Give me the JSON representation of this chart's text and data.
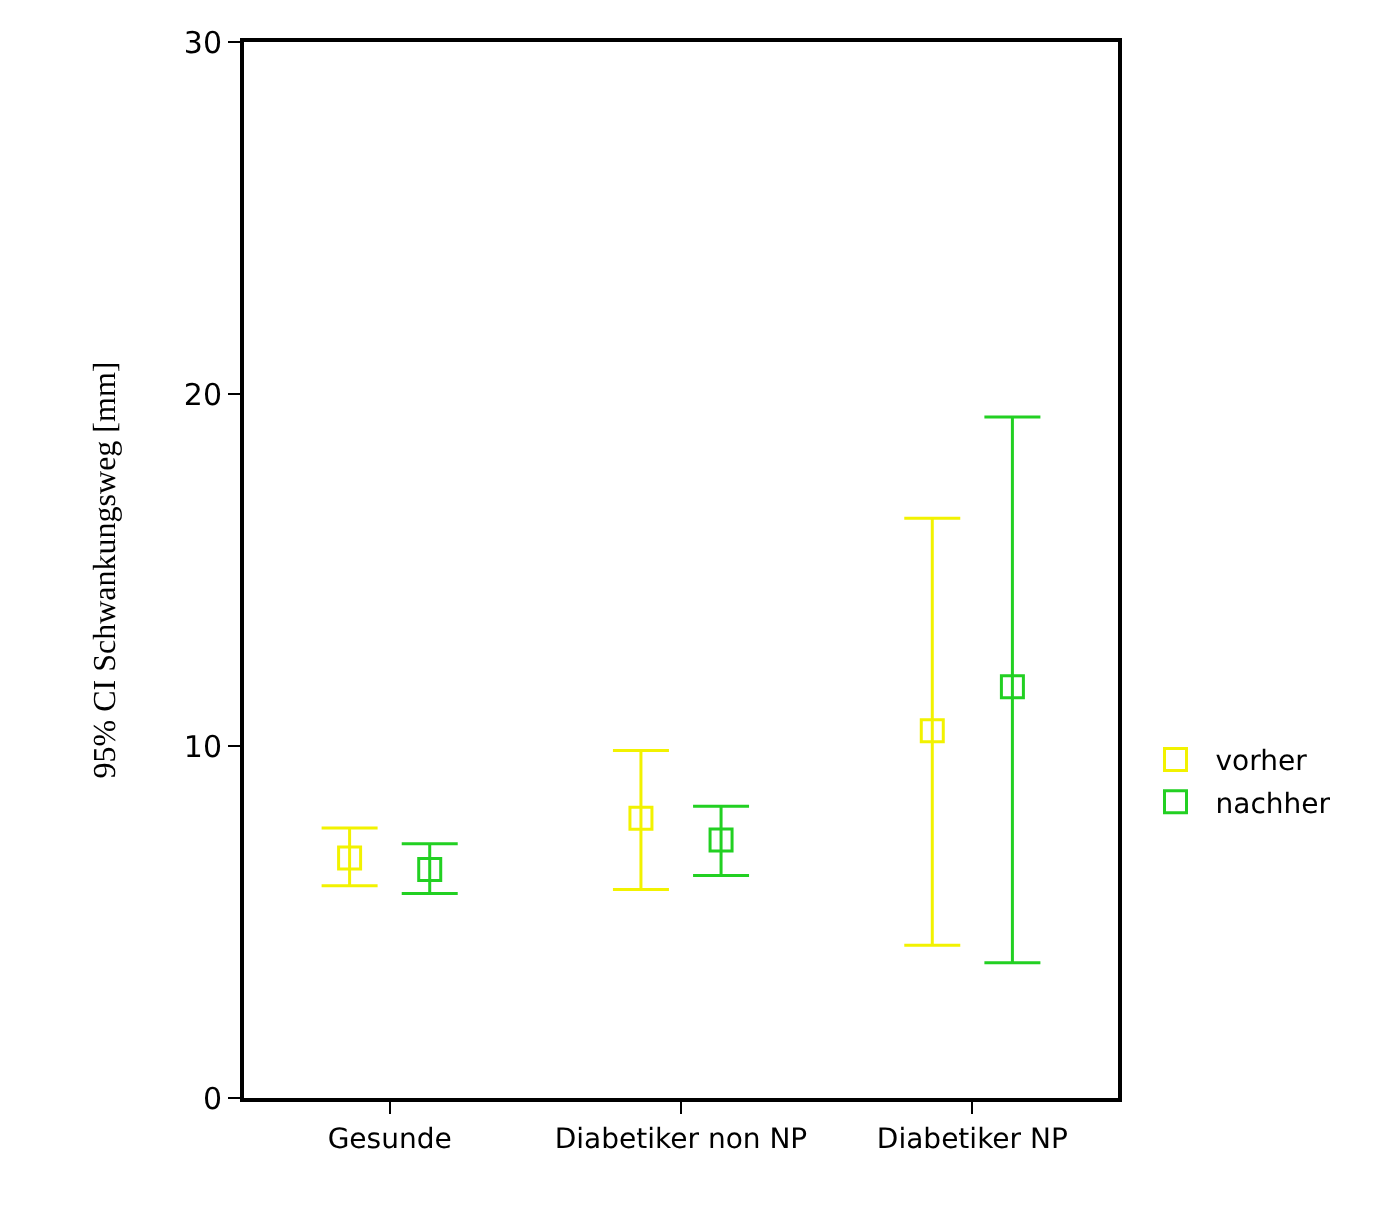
{
  "chart_data": {
    "type": "scatter",
    "ylabel": "95% CI Schwankungsweg [mm]",
    "categories": [
      "Gesunde",
      "Diabetiker non NP",
      "Diabetiker NP"
    ],
    "series": [
      {
        "name": "vorher",
        "color": "#f2f200",
        "values": [
          6.82,
          7.95,
          10.43
        ],
        "errors": [
          [
            6.03,
            7.67
          ],
          [
            5.92,
            9.87
          ],
          [
            4.34,
            16.47
          ]
        ]
      },
      {
        "name": "nachher",
        "color": "#22d022",
        "values": [
          6.49,
          7.33,
          11.68
        ],
        "errors": [
          [
            5.81,
            7.22
          ],
          [
            6.32,
            8.29
          ],
          [
            3.84,
            19.35
          ]
        ]
      }
    ],
    "ylim": [
      0,
      30
    ],
    "yticks": [
      0,
      10,
      20,
      30
    ],
    "grid": false,
    "legend": "right",
    "marker": "square"
  }
}
